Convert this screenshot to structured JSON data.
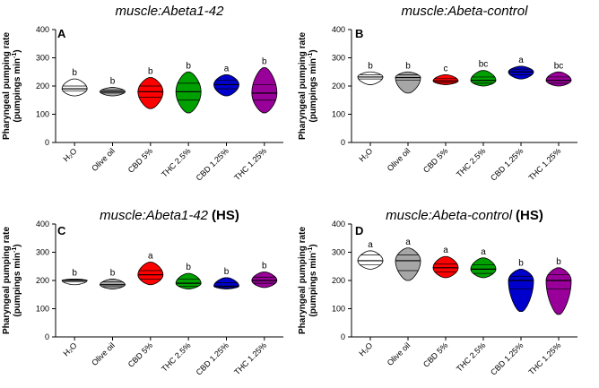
{
  "chart_data": [
    {
      "panel": "A",
      "title": "muscle:Abeta1-42",
      "title_suffix": "",
      "type": "violin",
      "ylabel_line1": "Pharyngeal pumping rate",
      "ylabel_line2": "(pumpings min",
      "ylabel_sup": "-1",
      "ylabel_end": ")",
      "ylim": [
        0,
        400
      ],
      "yticks": [
        "0",
        "100",
        "200",
        "300",
        "400"
      ],
      "categories": [
        "H₂O",
        "Olive oil",
        "CBD 5%",
        "THC 2.5%",
        "CBD 1.25%",
        "THC 1.25%"
      ],
      "colors": [
        "#ffffff",
        "#a6a6a6",
        "#ff0000",
        "#00a000",
        "#0000cc",
        "#990099"
      ],
      "series": [
        {
          "name": "H₂O",
          "min": 165,
          "max": 225,
          "median": 190,
          "q1": 182,
          "q3": 200,
          "letter": "b"
        },
        {
          "name": "Olive oil",
          "min": 165,
          "max": 195,
          "median": 180,
          "q1": 175,
          "q3": 186,
          "letter": "b"
        },
        {
          "name": "CBD 5%",
          "min": 120,
          "max": 230,
          "median": 180,
          "q1": 160,
          "q3": 200,
          "letter": "b"
        },
        {
          "name": "THC 2.5%",
          "min": 105,
          "max": 250,
          "median": 180,
          "q1": 150,
          "q3": 210,
          "letter": "b"
        },
        {
          "name": "CBD 1.25%",
          "min": 165,
          "max": 240,
          "median": 205,
          "q1": 190,
          "q3": 220,
          "letter": "a"
        },
        {
          "name": "THC 1.25%",
          "min": 105,
          "max": 265,
          "median": 175,
          "q1": 150,
          "q3": 205,
          "letter": "b"
        }
      ]
    },
    {
      "panel": "B",
      "title": "muscle:Abeta-control",
      "title_suffix": "",
      "type": "violin",
      "ylabel_line1": "Pharyngeal pumping rate",
      "ylabel_line2": "(pumpings min",
      "ylabel_sup": "-1",
      "ylabel_end": ")",
      "ylim": [
        0,
        400
      ],
      "yticks": [
        "0",
        "100",
        "200",
        "300",
        "400"
      ],
      "categories": [
        "H₂O",
        "Olive oil",
        "CBD 5%",
        "THC 2.5%",
        "CBD 1.25%",
        "THC 1.25%"
      ],
      "colors": [
        "#ffffff",
        "#a6a6a6",
        "#ff0000",
        "#00a000",
        "#0000cc",
        "#990099"
      ],
      "series": [
        {
          "name": "H₂O",
          "min": 205,
          "max": 250,
          "median": 232,
          "q1": 225,
          "q3": 240,
          "letter": "b"
        },
        {
          "name": "Olive oil",
          "min": 175,
          "max": 250,
          "median": 230,
          "q1": 220,
          "q3": 240,
          "letter": "b"
        },
        {
          "name": "CBD 5%",
          "min": 205,
          "max": 240,
          "median": 218,
          "q1": 212,
          "q3": 226,
          "letter": "c"
        },
        {
          "name": "THC 2.5%",
          "min": 200,
          "max": 255,
          "median": 220,
          "q1": 210,
          "q3": 232,
          "letter": "bc"
        },
        {
          "name": "CBD 1.25%",
          "min": 225,
          "max": 270,
          "median": 250,
          "q1": 240,
          "q3": 260,
          "letter": "a"
        },
        {
          "name": "THC 1.25%",
          "min": 200,
          "max": 250,
          "median": 220,
          "q1": 210,
          "q3": 232,
          "letter": "bc"
        }
      ]
    },
    {
      "panel": "C",
      "title": "muscle:Abeta1-42",
      "title_suffix": "(HS)",
      "type": "violin",
      "ylabel_line1": "Pharyngeal pumping rate",
      "ylabel_line2": "(pumpings min",
      "ylabel_sup": "-1",
      "ylabel_end": ")",
      "ylim": [
        0,
        400
      ],
      "yticks": [
        "0",
        "100",
        "200",
        "300",
        "400"
      ],
      "categories": [
        "H₂O",
        "Olive oil",
        "CBD 5%",
        "THC 2.5%",
        "CBD 1.25%",
        "THC 1.25%"
      ],
      "colors": [
        "#ffffff",
        "#a6a6a6",
        "#ff0000",
        "#00a000",
        "#0000cc",
        "#990099"
      ],
      "series": [
        {
          "name": "H₂O",
          "min": 185,
          "max": 205,
          "median": 200,
          "q1": 195,
          "q3": 202,
          "letter": "b"
        },
        {
          "name": "Olive oil",
          "min": 170,
          "max": 205,
          "median": 185,
          "q1": 178,
          "q3": 195,
          "letter": "b"
        },
        {
          "name": "CBD 5%",
          "min": 185,
          "max": 265,
          "median": 220,
          "q1": 205,
          "q3": 235,
          "letter": "a"
        },
        {
          "name": "THC 2.5%",
          "min": 170,
          "max": 225,
          "median": 190,
          "q1": 180,
          "q3": 205,
          "letter": "b"
        },
        {
          "name": "CBD 1.25%",
          "min": 170,
          "max": 210,
          "median": 180,
          "q1": 175,
          "q3": 192,
          "letter": "b"
        },
        {
          "name": "THC 1.25%",
          "min": 175,
          "max": 230,
          "median": 200,
          "q1": 190,
          "q3": 212,
          "letter": "b"
        }
      ]
    },
    {
      "panel": "D",
      "title": "muscle:Abeta-control",
      "title_suffix": "(HS)",
      "type": "violin",
      "ylabel_line1": "Pharyngeal pumping rate",
      "ylabel_line2": "(pumpings min",
      "ylabel_sup": "-1",
      "ylabel_end": ")",
      "ylim": [
        0,
        400
      ],
      "yticks": [
        "0",
        "100",
        "200",
        "300",
        "400"
      ],
      "categories": [
        "H₂O",
        "Olive oil",
        "CBD 5%",
        "THC 2.5%",
        "CBD 1.25%",
        "THC 1.25%"
      ],
      "colors": [
        "#ffffff",
        "#a6a6a6",
        "#ff0000",
        "#00a000",
        "#0000cc",
        "#990099"
      ],
      "series": [
        {
          "name": "H₂O",
          "min": 240,
          "max": 305,
          "median": 270,
          "q1": 255,
          "q3": 290,
          "letter": "a"
        },
        {
          "name": "Olive oil",
          "min": 200,
          "max": 315,
          "median": 270,
          "q1": 235,
          "q3": 290,
          "letter": "a"
        },
        {
          "name": "CBD 5%",
          "min": 210,
          "max": 285,
          "median": 245,
          "q1": 230,
          "q3": 258,
          "letter": "a"
        },
        {
          "name": "THC 2.5%",
          "min": 210,
          "max": 280,
          "median": 240,
          "q1": 225,
          "q3": 255,
          "letter": "a"
        },
        {
          "name": "CBD 1.25%",
          "min": 90,
          "max": 240,
          "median": 200,
          "q1": 170,
          "q3": 215,
          "letter": "b"
        },
        {
          "name": "THC 1.25%",
          "min": 80,
          "max": 245,
          "median": 200,
          "q1": 170,
          "q3": 220,
          "letter": "b"
        }
      ]
    }
  ]
}
